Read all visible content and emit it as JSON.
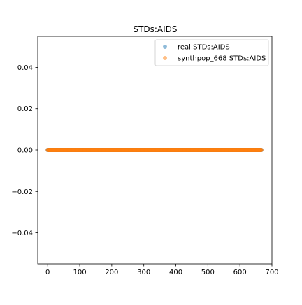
{
  "chart_data": {
    "type": "scatter",
    "title": "STDs:AIDS",
    "xlabel": "",
    "ylabel": "",
    "xlim": [
      -31,
      700
    ],
    "ylim": [
      -0.055,
      0.055
    ],
    "x_ticks": [
      0,
      100,
      200,
      300,
      400,
      500,
      600,
      700
    ],
    "x_tick_labels": [
      "0",
      "100",
      "200",
      "300",
      "400",
      "500",
      "600",
      "700"
    ],
    "y_ticks": [
      -0.04,
      -0.02,
      0.0,
      0.02,
      0.04
    ],
    "y_tick_labels": [
      "−0.04",
      "−0.02",
      "0.00",
      "0.02",
      "0.04"
    ],
    "grid": false,
    "legend_position": "top-right",
    "series": [
      {
        "name": "real STDs:AIDS",
        "color": "#1f77b4",
        "alpha": 0.5,
        "x_start": 0,
        "x_end": 667,
        "x_step": 1,
        "y_constant": 0
      },
      {
        "name": "synthpop_668 STDs:AIDS",
        "color": "#ff7f0e",
        "alpha": 0.5,
        "x_start": 0,
        "x_end": 667,
        "x_step": 1,
        "y_constant": 0
      }
    ]
  }
}
